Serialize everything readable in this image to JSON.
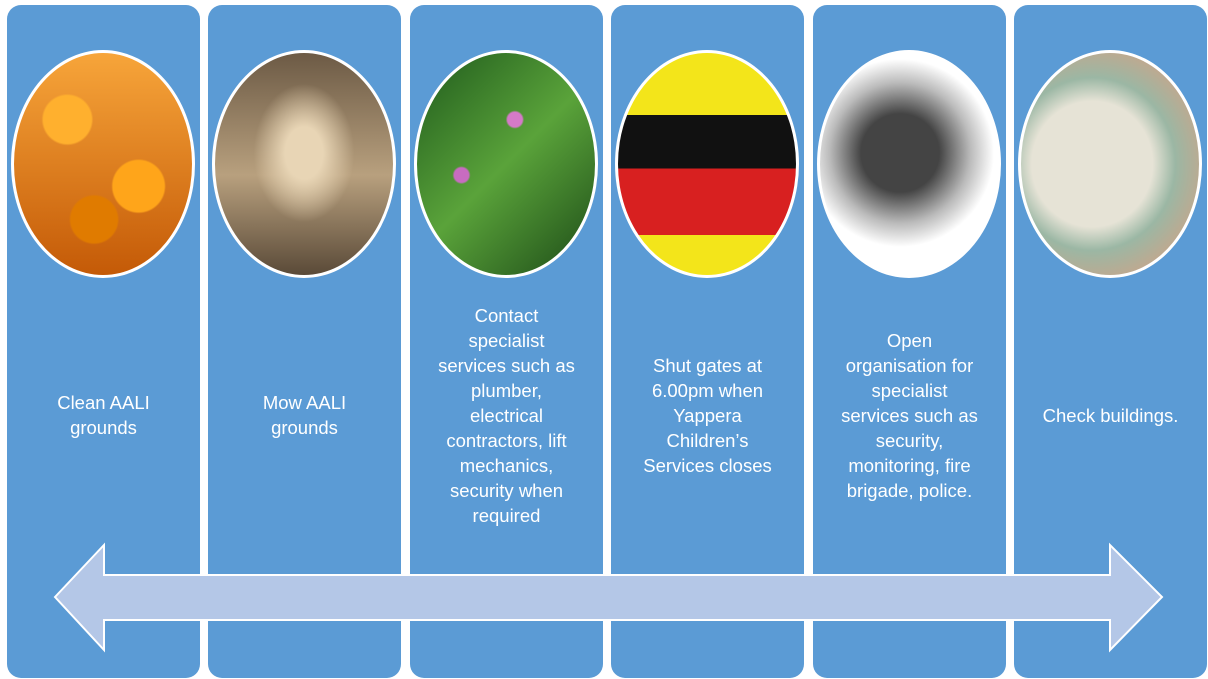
{
  "items": [
    {
      "lines": [
        "Clean AALI",
        "grounds"
      ]
    },
    {
      "lines": [
        "Mow AALI",
        "grounds"
      ]
    },
    {
      "lines": [
        "Contact",
        "specialist",
        "services such as",
        "plumber,",
        "electrical",
        "contractors, lift",
        "mechanics,",
        "security when",
        "required"
      ]
    },
    {
      "lines": [
        "Shut gates at",
        "6.00pm when",
        "Yappera",
        "Children’s",
        "Services closes"
      ]
    },
    {
      "lines": [
        "Open",
        "organisation for",
        "specialist",
        "services such as",
        "security,",
        "monitoring, fire",
        "brigade, police."
      ]
    },
    {
      "lines": [
        "Check buildings."
      ]
    }
  ]
}
